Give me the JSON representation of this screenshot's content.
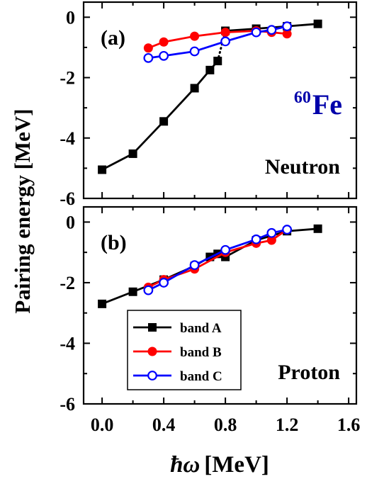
{
  "figure": {
    "ylabel": "Pairing energy [MeV]",
    "xlabel_symbol": "ħω",
    "xlabel_unit": "[MeV]"
  },
  "chart_data": [
    {
      "type": "line",
      "panel_label": "(a)",
      "annotation": "Neutron",
      "nucleus_mass": "60",
      "nucleus_symbol": "Fe",
      "xlim": [
        -0.12,
        1.65
      ],
      "ylim": [
        -6,
        0.5
      ],
      "xticks": [
        0.0,
        0.4,
        0.8,
        1.2,
        1.6
      ],
      "yticks": [
        0,
        -2,
        -4,
        -6
      ],
      "yticklabels": [
        "0",
        "-2",
        "-4",
        "-6"
      ],
      "series": [
        {
          "name": "band A",
          "color": "#000000",
          "marker": "filled-square",
          "x": [
            0.0,
            0.2,
            0.4,
            0.6,
            0.7,
            0.75,
            0.8,
            1.0,
            1.2,
            1.4
          ],
          "y": [
            -5.05,
            -4.52,
            -3.45,
            -2.35,
            -1.75,
            -1.45,
            -0.45,
            -0.38,
            -0.3,
            -0.22
          ],
          "dotted_segments": [
            [
              5,
              6
            ]
          ]
        },
        {
          "name": "band B",
          "color": "#ff0000",
          "marker": "filled-circle",
          "x": [
            0.3,
            0.4,
            0.6,
            0.8,
            1.0,
            1.1,
            1.2
          ],
          "y": [
            -1.02,
            -0.82,
            -0.63,
            -0.5,
            -0.45,
            -0.5,
            -0.55
          ]
        },
        {
          "name": "band C",
          "color": "#0000ff",
          "marker": "open-circle",
          "x": [
            0.3,
            0.4,
            0.6,
            0.8,
            1.0,
            1.1,
            1.2
          ],
          "y": [
            -1.35,
            -1.28,
            -1.13,
            -0.8,
            -0.5,
            -0.42,
            -0.3
          ]
        }
      ]
    },
    {
      "type": "line",
      "panel_label": "(b)",
      "annotation": "Proton",
      "xlim": [
        -0.12,
        1.65
      ],
      "ylim": [
        -6,
        0.5
      ],
      "xticks": [
        0.0,
        0.4,
        0.8,
        1.2,
        1.6
      ],
      "xticklabels": [
        "0.0",
        "0.4",
        "0.8",
        "1.2",
        "1.6"
      ],
      "yticks": [
        0,
        -2,
        -4,
        -6
      ],
      "yticklabels": [
        "0",
        "-2",
        "-4",
        "-6"
      ],
      "legend": {
        "position": "lower-left",
        "entries": [
          "band A",
          "band B",
          "band C"
        ]
      },
      "series": [
        {
          "name": "band A",
          "color": "#000000",
          "marker": "filled-square",
          "x": [
            0.0,
            0.2,
            0.4,
            0.6,
            0.7,
            0.75,
            0.8,
            1.0,
            1.2,
            1.4
          ],
          "y": [
            -2.7,
            -2.3,
            -1.9,
            -1.45,
            -1.15,
            -1.05,
            -1.15,
            -0.6,
            -0.3,
            -0.22
          ]
        },
        {
          "name": "band B",
          "color": "#ff0000",
          "marker": "filled-circle",
          "x": [
            0.3,
            0.4,
            0.6,
            0.8,
            1.0,
            1.1,
            1.2
          ],
          "y": [
            -2.15,
            -1.9,
            -1.55,
            -1.0,
            -0.7,
            -0.6,
            -0.25
          ]
        },
        {
          "name": "band C",
          "color": "#0000ff",
          "marker": "open-circle",
          "x": [
            0.3,
            0.4,
            0.6,
            0.8,
            1.0,
            1.1,
            1.2
          ],
          "y": [
            -2.25,
            -2.0,
            -1.42,
            -0.92,
            -0.57,
            -0.36,
            -0.25
          ]
        }
      ]
    }
  ]
}
